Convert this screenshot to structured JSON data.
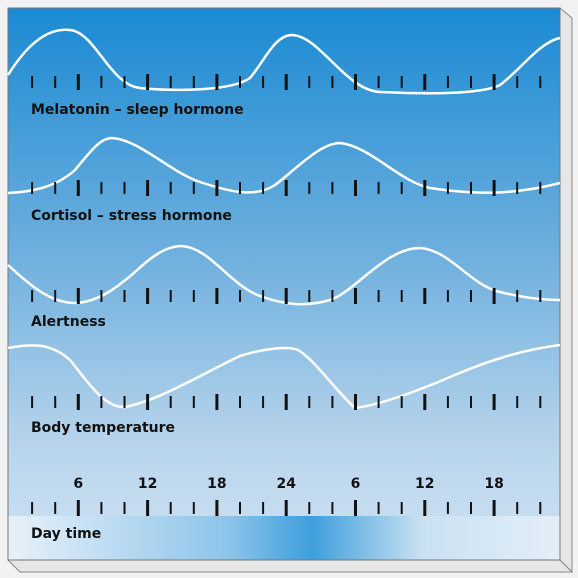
{
  "rows": [
    {
      "label": "Melatonin – sleep hormone"
    },
    {
      "label": "Cortisol – stress hormone"
    },
    {
      "label": "Alertness"
    },
    {
      "label": "Body temperature"
    }
  ],
  "time_axis": {
    "label": "Day time",
    "hours": [
      "6",
      "12",
      "18",
      "24",
      "6",
      "12",
      "18"
    ]
  }
}
